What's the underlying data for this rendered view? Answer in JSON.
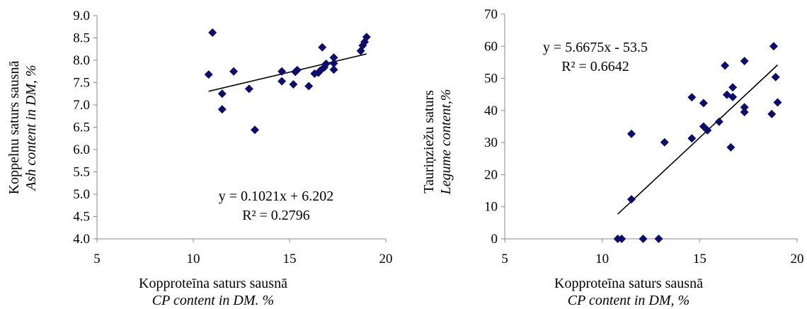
{
  "chart_data": [
    {
      "type": "scatter",
      "xlabel": "Kopproteīna saturs sausnā",
      "xlabel_en": "CP content in DM. %",
      "ylabel": "Koppelnu saturs sausnā",
      "ylabel_en": "Ash content in DM, %",
      "xlim": [
        5,
        20
      ],
      "ylim": [
        4.0,
        9.0
      ],
      "xticks": [
        "5",
        "10",
        "15",
        "20"
      ],
      "yticks": [
        "4.0",
        "4.5",
        "5.0",
        "5.5",
        "6.0",
        "6.5",
        "7.0",
        "7.5",
        "8.0",
        "8.5",
        "9.0"
      ],
      "marker_color": "#0d0d6b",
      "trendline": {
        "slope": 0.1021,
        "intercept": 6.202,
        "x_range": [
          10.8,
          19.0
        ]
      },
      "equation": "y = 0.1021x + 6.202",
      "r2": "R² = 0.2796",
      "points": [
        [
          10.8,
          7.68
        ],
        [
          11.0,
          8.62
        ],
        [
          11.5,
          7.25
        ],
        [
          11.5,
          6.9
        ],
        [
          12.1,
          7.75
        ],
        [
          12.9,
          7.36
        ],
        [
          13.2,
          6.44
        ],
        [
          14.6,
          7.53
        ],
        [
          14.6,
          7.75
        ],
        [
          15.2,
          7.46
        ],
        [
          15.3,
          7.74
        ],
        [
          15.4,
          7.78
        ],
        [
          16.0,
          7.42
        ],
        [
          16.3,
          7.7
        ],
        [
          16.5,
          7.72
        ],
        [
          16.6,
          7.77
        ],
        [
          16.7,
          8.29
        ],
        [
          16.8,
          7.84
        ],
        [
          16.9,
          7.92
        ],
        [
          17.3,
          7.79
        ],
        [
          17.3,
          7.93
        ],
        [
          17.3,
          8.06
        ],
        [
          18.7,
          8.21
        ],
        [
          18.8,
          8.33
        ],
        [
          18.9,
          8.41
        ],
        [
          19.0,
          8.52
        ]
      ]
    },
    {
      "type": "scatter",
      "xlabel": "Kopproteīna saturs sausnā",
      "xlabel_en": "CP content in DM, %",
      "ylabel": "Tauriņziežu saturs",
      "ylabel_en": "Legume content,%",
      "xlim": [
        5,
        20
      ],
      "ylim": [
        0,
        70
      ],
      "xticks": [
        "5",
        "10",
        "15",
        "20"
      ],
      "yticks": [
        "0",
        "10",
        "20",
        "30",
        "40",
        "50",
        "60",
        "70"
      ],
      "marker_color": "#0d0d6b",
      "trendline": {
        "slope": 5.6675,
        "intercept": -53.5,
        "x_range": [
          10.8,
          19.0
        ]
      },
      "equation": "y = 5.6675x - 53.5",
      "r2": "R² = 0.6642",
      "points": [
        [
          10.8,
          0
        ],
        [
          11.0,
          0
        ],
        [
          11.5,
          12.3
        ],
        [
          11.5,
          32.7
        ],
        [
          12.1,
          0
        ],
        [
          12.9,
          0
        ],
        [
          13.2,
          30.1
        ],
        [
          14.6,
          31.3
        ],
        [
          14.6,
          44.1
        ],
        [
          15.2,
          42.3
        ],
        [
          15.2,
          35.0
        ],
        [
          15.4,
          33.8
        ],
        [
          16.0,
          36.5
        ],
        [
          16.3,
          54.0
        ],
        [
          16.4,
          44.9
        ],
        [
          16.6,
          28.5
        ],
        [
          16.7,
          47.2
        ],
        [
          16.7,
          44.2
        ],
        [
          17.3,
          41.0
        ],
        [
          17.3,
          39.5
        ],
        [
          17.3,
          55.4
        ],
        [
          18.7,
          38.9
        ],
        [
          18.8,
          60.0
        ],
        [
          18.9,
          50.4
        ],
        [
          19.0,
          42.5
        ]
      ]
    }
  ]
}
